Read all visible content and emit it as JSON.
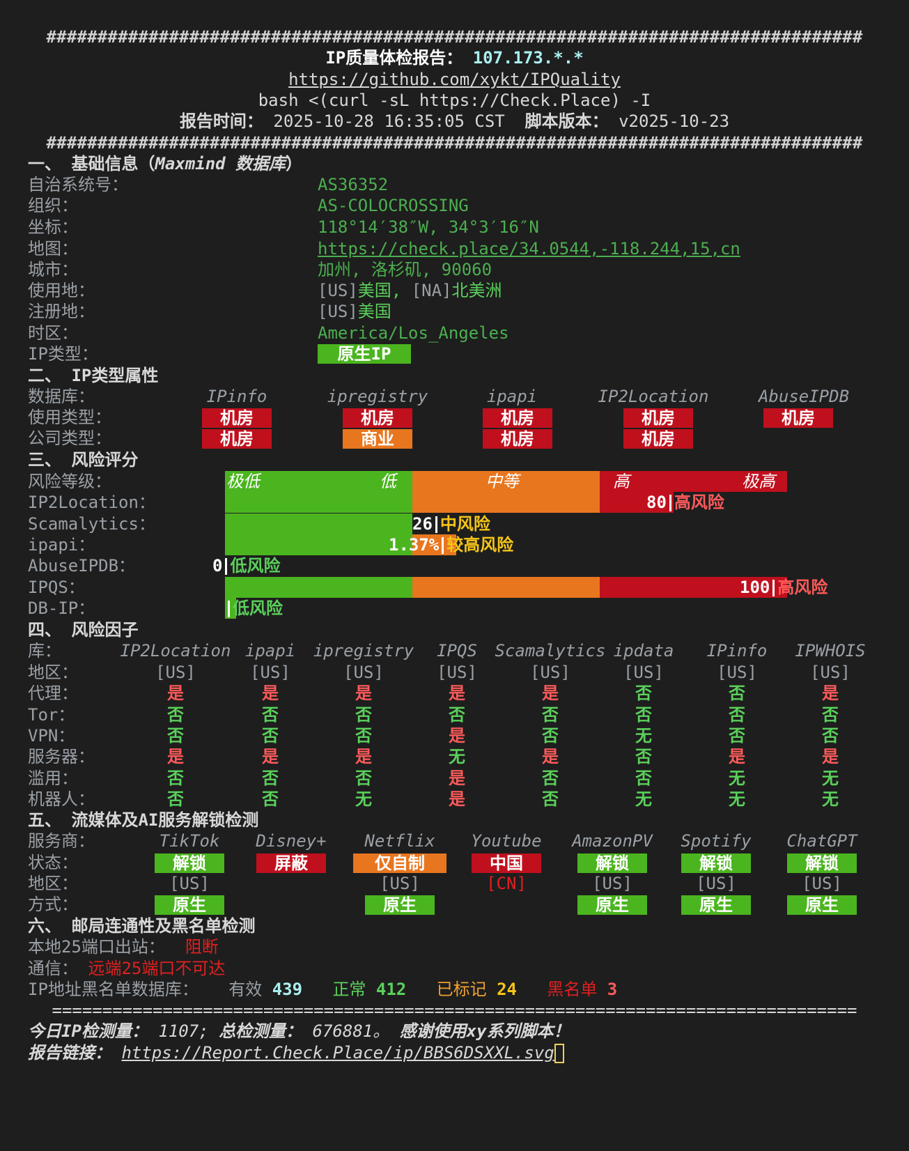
{
  "header": {
    "hash_line": "################################################################################",
    "title_label": "IP质量体检报告：",
    "title_ip": "107.173.*.*",
    "github_url": "https://github.com/xykt/IPQuality",
    "command": "bash <(curl -sL https://Check.Place) -I",
    "report_time_label": "报告时间：",
    "report_time": "2025-10-28 16:35:05 CST",
    "version_label": "脚本版本：",
    "version": "v2025-10-23"
  },
  "s1": {
    "title": "一、 基础信息（",
    "title_db": "Maxmind 数据库",
    "title_end": "）",
    "rows": [
      {
        "label": "自治系统号：",
        "value": "AS36352"
      },
      {
        "label": "组织：",
        "value": "AS-COLOCROSSING"
      },
      {
        "label": "坐标：",
        "value": "118°14′38″W, 34°3′16″N"
      },
      {
        "label": "地图：",
        "value": "https://check.place/34.0544,-118.244,15,cn"
      },
      {
        "label": "城市：",
        "value": "加州, 洛杉矶, 90060"
      },
      {
        "label": "使用地：",
        "value_a": "[US]",
        "value_b": "美国, ",
        "value_c": "[NA]",
        "value_d": "北美洲"
      },
      {
        "label": "注册地：",
        "value_a": "[US]",
        "value_b": "美国"
      },
      {
        "label": "时区：",
        "value": "America/Los_Angeles"
      },
      {
        "label": "IP类型：",
        "value": "原生IP"
      }
    ]
  },
  "s2": {
    "title": "二、 IP类型属性",
    "db_label": "数据库：",
    "use_label": "使用类型：",
    "co_label": "公司类型：",
    "dbs": [
      "IPinfo",
      "ipregistry",
      "ipapi",
      "IP2Location",
      "AbuseIPDB"
    ],
    "usage": [
      "机房",
      "机房",
      "机房",
      "机房",
      "机房"
    ],
    "company": [
      "机房",
      "商业",
      "机房",
      "机房",
      ""
    ]
  },
  "s3": {
    "title": "三、 风险评分",
    "level_label": "风险等级：",
    "levels": [
      "极低",
      "低",
      "中等",
      "高",
      "极高"
    ],
    "rows": [
      {
        "label": "IP2Location：",
        "score": "80",
        "text": "高风险",
        "value": 80
      },
      {
        "label": "Scamalytics：",
        "score": "26",
        "text": "中风险",
        "value": 26
      },
      {
        "label": "ipapi：",
        "score": "1.37%",
        "text": "较高风险",
        "value": 1.37
      },
      {
        "label": "AbuseIPDB：",
        "score": "0",
        "text": "低风险",
        "value": 0
      },
      {
        "label": "IPQS：",
        "score": "100",
        "text": "高风险",
        "value": 100
      },
      {
        "label": "DB-IP：",
        "score": "",
        "text": "低风险",
        "value": 0
      }
    ]
  },
  "s4": {
    "title": "四、 风险因子",
    "db_label": "库：",
    "dbs": [
      "IP2Location",
      "ipapi",
      "ipregistry",
      "IPQS",
      "Scamalytics",
      "ipdata",
      "IPinfo",
      "IPWHOIS"
    ],
    "rows": [
      {
        "label": "地区：",
        "values": [
          "[US]",
          "[US]",
          "[US]",
          "[US]",
          "[US]",
          "[US]",
          "[US]",
          "[US]"
        ]
      },
      {
        "label": "代理：",
        "values": [
          "是",
          "是",
          "是",
          "是",
          "是",
          "否",
          "否",
          "是"
        ]
      },
      {
        "label": "Tor：",
        "values": [
          "否",
          "否",
          "否",
          "否",
          "否",
          "否",
          "否",
          "否"
        ]
      },
      {
        "label": "VPN：",
        "values": [
          "否",
          "否",
          "否",
          "是",
          "否",
          "无",
          "否",
          "否"
        ]
      },
      {
        "label": "服务器：",
        "values": [
          "是",
          "是",
          "是",
          "无",
          "是",
          "否",
          "是",
          "是"
        ]
      },
      {
        "label": "滥用：",
        "values": [
          "否",
          "否",
          "否",
          "是",
          "否",
          "否",
          "无",
          "无"
        ]
      },
      {
        "label": "机器人：",
        "values": [
          "否",
          "否",
          "无",
          "是",
          "否",
          "无",
          "无",
          "无"
        ]
      }
    ]
  },
  "s5": {
    "title": "五、 流媒体及AI服务解锁检测",
    "provider_label": "服务商：",
    "status_label": "状态：",
    "region_label": "地区：",
    "mode_label": "方式：",
    "services": [
      {
        "name": "TikTok",
        "status": "解锁",
        "region": "[US]",
        "mode": "原生",
        "color": "#4bb51f"
      },
      {
        "name": "Disney+",
        "status": "屏蔽",
        "region": "",
        "mode": "",
        "color": "#c0101e"
      },
      {
        "name": "Netflix",
        "status": "仅自制",
        "region": "[US]",
        "mode": "原生",
        "color": "#e8761f"
      },
      {
        "name": "Youtube",
        "status": "中国",
        "region": "[CN]",
        "mode": "",
        "color": "#c0101e"
      },
      {
        "name": "AmazonPV",
        "status": "解锁",
        "region": "[US]",
        "mode": "原生",
        "color": "#4bb51f"
      },
      {
        "name": "Spotify",
        "status": "解锁",
        "region": "[US]",
        "mode": "原生",
        "color": "#4bb51f"
      },
      {
        "name": "ChatGPT",
        "status": "解锁",
        "region": "[US]",
        "mode": "原生",
        "color": "#4bb51f"
      }
    ]
  },
  "s6": {
    "title": "六、 邮局连通性及黑名单检测",
    "port_label": "本地25端口出站：",
    "port_value": "阻断",
    "comm_label": "通信：",
    "comm_value": "远端25端口不可达",
    "bl_label": "IP地址黑名单数据库：",
    "valid_label": "有效",
    "valid": "439",
    "normal_label": "正常",
    "normal": "412",
    "marked_label": "已标记",
    "marked": "24",
    "black_label": "黑名单",
    "black": "3"
  },
  "footer": {
    "eq_line": "================================================================================",
    "today_label": "今日IP检测量：",
    "today": "1107;",
    "total_label": "总检测量：",
    "total": "676881。",
    "thanks": "感谢使用xy系列脚本！",
    "link_label": "报告链接：",
    "link": "https://Report.Check.Place/ip/BBS6DSXXL.svg"
  }
}
